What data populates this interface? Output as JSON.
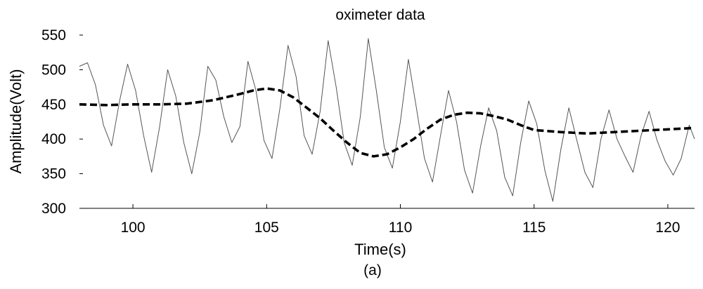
{
  "chart_data": {
    "type": "line",
    "title": "oximeter data",
    "xlabel": "Time(s)",
    "ylabel": "Amplitude(Volt)",
    "caption": "(a)",
    "xlim": [
      98,
      121
    ],
    "ylim": [
      300,
      550
    ],
    "x_ticks": [
      100,
      105,
      110,
      115,
      120
    ],
    "y_ticks": [
      300,
      350,
      400,
      450,
      500,
      550
    ],
    "grid": false,
    "series": [
      {
        "style": "thin-solid",
        "color": "#555555",
        "x": [
          98.0,
          98.3,
          98.6,
          98.9,
          99.2,
          99.5,
          99.8,
          100.1,
          100.4,
          100.7,
          101.0,
          101.3,
          101.6,
          101.9,
          102.2,
          102.5,
          102.8,
          103.1,
          103.4,
          103.7,
          104.0,
          104.3,
          104.6,
          104.9,
          105.2,
          105.5,
          105.8,
          106.1,
          106.4,
          106.7,
          107.0,
          107.3,
          107.6,
          107.9,
          108.2,
          108.5,
          108.8,
          109.1,
          109.4,
          109.7,
          110.0,
          110.3,
          110.6,
          110.9,
          111.2,
          111.5,
          111.8,
          112.1,
          112.4,
          112.7,
          113.0,
          113.3,
          113.6,
          113.9,
          114.2,
          114.5,
          114.8,
          115.1,
          115.4,
          115.7,
          116.0,
          116.3,
          116.6,
          116.9,
          117.2,
          117.5,
          117.8,
          118.1,
          118.4,
          118.7,
          119.0,
          119.3,
          119.6,
          119.9,
          120.2,
          120.5,
          120.8,
          121.0
        ],
        "y": [
          505,
          510,
          478,
          420,
          390,
          455,
          508,
          470,
          405,
          352,
          418,
          500,
          462,
          395,
          350,
          410,
          505,
          485,
          432,
          395,
          418,
          512,
          470,
          398,
          372,
          445,
          535,
          490,
          405,
          378,
          440,
          542,
          475,
          395,
          362,
          432,
          545,
          470,
          388,
          358,
          425,
          515,
          445,
          372,
          338,
          405,
          470,
          425,
          355,
          322,
          390,
          445,
          412,
          345,
          318,
          395,
          455,
          422,
          355,
          310,
          385,
          445,
          398,
          352,
          330,
          400,
          442,
          400,
          375,
          352,
          405,
          440,
          398,
          368,
          348,
          372,
          420,
          400
        ]
      },
      {
        "style": "thick-dashed",
        "color": "#000000",
        "x": [
          98.0,
          99.0,
          100.0,
          101.0,
          102.0,
          103.0,
          104.0,
          104.5,
          105.0,
          105.5,
          106.0,
          106.5,
          107.0,
          107.5,
          108.0,
          108.5,
          109.0,
          109.5,
          110.0,
          110.5,
          111.0,
          111.5,
          112.0,
          112.5,
          113.0,
          113.5,
          114.0,
          114.5,
          115.0,
          116.0,
          117.0,
          118.0,
          119.0,
          120.0,
          121.0
        ],
        "y": [
          450,
          449,
          450,
          450,
          451,
          456,
          465,
          470,
          473,
          470,
          460,
          445,
          430,
          412,
          395,
          380,
          375,
          378,
          388,
          400,
          415,
          428,
          435,
          438,
          437,
          433,
          428,
          420,
          413,
          410,
          408,
          410,
          412,
          414,
          416
        ]
      }
    ]
  }
}
